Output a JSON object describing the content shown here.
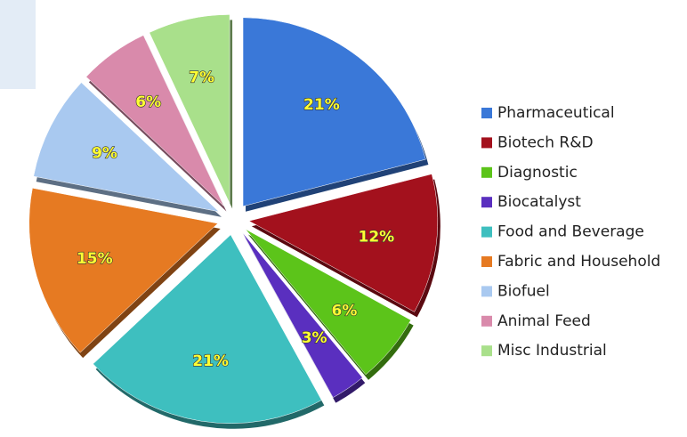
{
  "chart_data": {
    "type": "pie",
    "categories": [
      "Pharmaceutical",
      "Biotech R&D",
      "Diagnostic",
      "Biocatalyst",
      "Food and Beverage",
      "Fabric and Household",
      "Biofuel",
      "Animal Feed",
      "Misc Industrial"
    ],
    "values": [
      21,
      12,
      6,
      3,
      21,
      15,
      9,
      6,
      7
    ],
    "value_labels": [
      "21%",
      "12%",
      "6%",
      "3%",
      "21%",
      "15%",
      "9%",
      "6%",
      "7%"
    ],
    "colors": [
      "#3a78d8",
      "#a3111d",
      "#5cc41a",
      "#5a2fbf",
      "#3ebfbf",
      "#e67a22",
      "#a9c9f0",
      "#d98aab",
      "#a9e08b"
    ],
    "legend": "right"
  }
}
